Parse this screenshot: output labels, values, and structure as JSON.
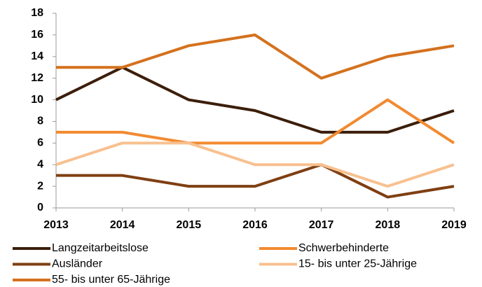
{
  "chart_data": {
    "type": "line",
    "categories": [
      "2013",
      "2014",
      "2015",
      "2016",
      "2017",
      "2018",
      "2019"
    ],
    "series": [
      {
        "name": "Langzeitarbeitslose",
        "color": "#3b1e0a",
        "values": [
          10,
          13,
          10,
          9,
          7,
          7,
          9
        ]
      },
      {
        "name": "Schwerbehinderte",
        "color": "#f28a30",
        "values": [
          7,
          7,
          6,
          6,
          6,
          10,
          6
        ]
      },
      {
        "name": "Ausländer",
        "color": "#7f3f12",
        "values": [
          3,
          3,
          2,
          2,
          4,
          1,
          2
        ]
      },
      {
        "name": "15- bis unter 25-Jährige",
        "color": "#f8c08f",
        "values": [
          4,
          6,
          6,
          4,
          4,
          2,
          4
        ]
      },
      {
        "name": "55- bis unter 65-Jährige",
        "color": "#d4711e",
        "values": [
          13,
          13,
          15,
          16,
          12,
          14,
          15
        ]
      }
    ],
    "ylim": [
      0,
      18
    ],
    "yticks": [
      0,
      2,
      4,
      6,
      8,
      10,
      12,
      14,
      16,
      18
    ]
  }
}
